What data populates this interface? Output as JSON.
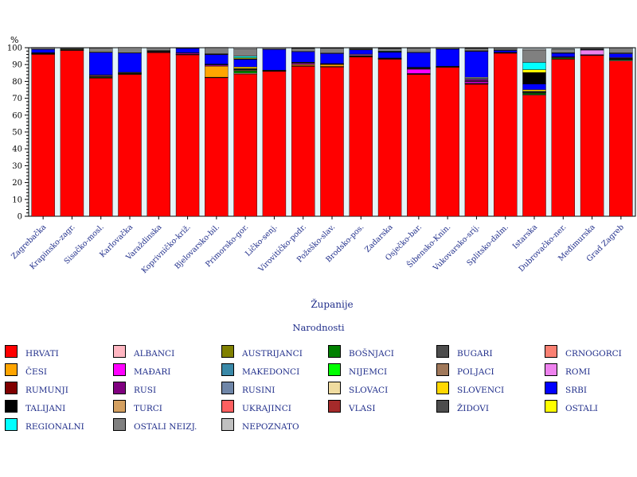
{
  "chart_data": {
    "type": "bar",
    "stacked": true,
    "unit_label": "%",
    "xlabel": "Županije",
    "legend_title": "Narodnosti",
    "ylim": [
      0,
      100
    ],
    "yticks": [
      0,
      10,
      20,
      30,
      40,
      50,
      60,
      70,
      80,
      90,
      100
    ],
    "categories": [
      "Zagrebačka",
      "Krapinsko-zagr.",
      "Sisačko-mosl.",
      "Karlovačka",
      "Varaždinska",
      "Koprivničko-križ.",
      "Bjelovarsko-bil.",
      "Primorsko-gor.",
      "Ličko-senj.",
      "Virovitičko-podr.",
      "Požeško-slav.",
      "Brodsko-pos.",
      "Zadarska",
      "Osječko-bar.",
      "Šibensko-Knin.",
      "Vukovarsko-srij.",
      "Splitsko-dalm.",
      "Istarska",
      "Dubrovačko-ner.",
      "Međimurska",
      "Grad Zagreb"
    ],
    "series": [
      {
        "name": "HRVATI",
        "color": "#ff0000",
        "values": [
          96.1,
          98.4,
          82.0,
          84.2,
          97.1,
          95.8,
          82.2,
          84.3,
          86.0,
          89.0,
          88.6,
          94.5,
          93.2,
          84.2,
          88.4,
          78.3,
          96.7,
          71.9,
          93.2,
          95.4,
          92.1
        ]
      },
      {
        "name": "ALBANCI",
        "color": "#ffb6c1",
        "values": [
          0.1,
          0.1,
          0.1,
          0.1,
          0.1,
          0.1,
          0.1,
          0.5,
          0.1,
          0.1,
          0.1,
          0.1,
          0.1,
          0.1,
          0.1,
          0.2,
          0.2,
          0.3,
          0.2,
          0.1,
          0.4
        ]
      },
      {
        "name": "AUSTRIJANCI",
        "color": "#808000",
        "values": [
          0,
          0,
          0,
          0,
          0,
          0,
          0,
          0,
          0,
          0,
          0,
          0,
          0,
          0,
          0,
          0,
          0,
          0,
          0,
          0,
          0
        ]
      },
      {
        "name": "BOŠNJACI",
        "color": "#008000",
        "values": [
          0.2,
          0.1,
          0.5,
          0.4,
          0.1,
          0.1,
          0.1,
          1.5,
          0.2,
          0.1,
          0.1,
          0.3,
          0.1,
          0.1,
          0.1,
          0.2,
          0.1,
          0.9,
          0.6,
          0.1,
          0.5
        ]
      },
      {
        "name": "BUGARI",
        "color": "#4d4d4d",
        "values": [
          0,
          0,
          0,
          0,
          0,
          0,
          0,
          0,
          0,
          0,
          0,
          0,
          0,
          0,
          0,
          0,
          0,
          0,
          0,
          0,
          0
        ]
      },
      {
        "name": "CRNOGORCI",
        "color": "#fa8072",
        "values": [
          0.1,
          0,
          0.1,
          0.1,
          0,
          0,
          0.1,
          0.5,
          0.1,
          0.1,
          0.1,
          0.1,
          0.1,
          0.1,
          0.1,
          0.1,
          0.1,
          0.3,
          0.4,
          0,
          0.2
        ]
      },
      {
        "name": "ČESI",
        "color": "#ffa500",
        "values": [
          0.1,
          0,
          0.3,
          0.1,
          0.1,
          0.1,
          6.5,
          0.1,
          0,
          0.7,
          1.2,
          0.1,
          0.1,
          0.2,
          0,
          0.1,
          0,
          0.1,
          0,
          0,
          0.1
        ]
      },
      {
        "name": "MAĐARI",
        "color": "#ff00ff",
        "values": [
          0.1,
          0,
          0.1,
          0,
          0.1,
          0.5,
          0.6,
          0.1,
          0,
          0.6,
          0.1,
          0.1,
          0,
          2.6,
          0,
          0.9,
          0,
          0.1,
          0,
          0.3,
          0.1
        ]
      },
      {
        "name": "MAKEDONCI",
        "color": "#3a89a8",
        "values": [
          0.1,
          0,
          0.1,
          0.1,
          0,
          0,
          0.1,
          0.3,
          0.1,
          0.1,
          0.1,
          0.1,
          0.1,
          0.1,
          0.1,
          0.1,
          0.1,
          0.4,
          0.1,
          0,
          0.2
        ]
      },
      {
        "name": "NIJEMCI",
        "color": "#00ff00",
        "values": [
          0,
          0,
          0,
          0,
          0,
          0,
          0.1,
          0.1,
          0,
          0.1,
          0.1,
          0.1,
          0,
          0.2,
          0,
          0.1,
          0,
          0.1,
          0,
          0,
          0
        ]
      },
      {
        "name": "POLJACI",
        "color": "#a0785a",
        "values": [
          0,
          0,
          0,
          0,
          0,
          0,
          0,
          0,
          0,
          0,
          0,
          0,
          0,
          0,
          0,
          0,
          0,
          0,
          0,
          0,
          0
        ]
      },
      {
        "name": "ROMI",
        "color": "#ee82ee",
        "values": [
          0.1,
          0.1,
          0.4,
          0.1,
          0.3,
          0.2,
          0.3,
          0.2,
          0,
          0.3,
          0.1,
          0.7,
          0.1,
          0.3,
          0.1,
          0.3,
          0,
          0.1,
          0,
          2.7,
          0.2
        ]
      },
      {
        "name": "RUMUNJI",
        "color": "#800000",
        "values": [
          0,
          0,
          0,
          0,
          0,
          0,
          0,
          0,
          0,
          0,
          0,
          0,
          0,
          0,
          0,
          0,
          0,
          0,
          0,
          0,
          0
        ]
      },
      {
        "name": "RUSI",
        "color": "#800080",
        "values": [
          0,
          0,
          0,
          0,
          0,
          0,
          0,
          0,
          0,
          0,
          0,
          0,
          0,
          0.1,
          0,
          1.0,
          0,
          0,
          0,
          0,
          0
        ]
      },
      {
        "name": "RUSINI",
        "color": "#6f86a8",
        "values": [
          0,
          0,
          0,
          0,
          0,
          0,
          0,
          0,
          0,
          0,
          0,
          0,
          0,
          0.1,
          0,
          0.6,
          0,
          0,
          0,
          0,
          0
        ]
      },
      {
        "name": "SLOVACI",
        "color": "#f0dca0",
        "values": [
          0,
          0,
          0,
          0,
          0,
          0,
          0.1,
          0,
          0,
          0.2,
          0,
          0,
          0,
          0.2,
          0,
          0.5,
          0,
          0,
          0,
          0,
          0
        ]
      },
      {
        "name": "SLOVENCI",
        "color": "#ffd700",
        "values": [
          0.2,
          0.4,
          0.3,
          0.3,
          0.2,
          0.2,
          0.1,
          1.0,
          0.2,
          0.1,
          0.1,
          0.1,
          0.1,
          0.1,
          0.1,
          0,
          0.1,
          0.9,
          0.1,
          0.2,
          0.3
        ]
      },
      {
        "name": "SRBI",
        "color": "#0000ff",
        "values": [
          1.9,
          0.1,
          13.3,
          11.4,
          0.1,
          2.6,
          5.6,
          4.4,
          12.3,
          6.3,
          6.0,
          2.6,
          3.5,
          8.7,
          10.2,
          15.5,
          1.1,
          3.3,
          2.1,
          0.1,
          2.4
        ]
      },
      {
        "name": "TALIJANI",
        "color": "#000000",
        "values": [
          0,
          0,
          0,
          0,
          0,
          0,
          0.1,
          0.5,
          0,
          0,
          0.1,
          0,
          0.1,
          0,
          0,
          0,
          0,
          6.9,
          0,
          0,
          0
        ]
      },
      {
        "name": "TURCI",
        "color": "#d4a060",
        "values": [
          0,
          0,
          0,
          0,
          0,
          0,
          0,
          0,
          0,
          0,
          0,
          0,
          0,
          0,
          0,
          0,
          0,
          0,
          0,
          0,
          0
        ]
      },
      {
        "name": "UKRAJINCI",
        "color": "#ff6060",
        "values": [
          0,
          0,
          0,
          0,
          0,
          0,
          0.1,
          0,
          0,
          0,
          0,
          0,
          0,
          0,
          0,
          0.1,
          0,
          0,
          0,
          0,
          0
        ]
      },
      {
        "name": "VLASI",
        "color": "#a52a2a",
        "values": [
          0,
          0,
          0,
          0,
          0,
          0,
          0,
          0,
          0,
          0,
          0,
          0,
          0,
          0,
          0,
          0,
          0,
          0,
          0,
          0,
          0
        ]
      },
      {
        "name": "ŽIDOVI",
        "color": "#4d4d4d",
        "values": [
          0,
          0,
          0,
          0,
          0,
          0,
          0,
          0,
          0,
          0,
          0,
          0,
          0,
          0,
          0,
          0,
          0,
          0,
          0,
          0,
          0
        ]
      },
      {
        "name": "OSTALI",
        "color": "#ffff00",
        "values": [
          0.2,
          0.1,
          0.3,
          0.2,
          0.1,
          0.1,
          0.2,
          0.6,
          0.1,
          0.1,
          0.1,
          0.1,
          0.2,
          0.1,
          0.1,
          0.2,
          0.1,
          1.7,
          0.2,
          0.1,
          0.3
        ]
      },
      {
        "name": "REGIONALNI",
        "color": "#00ffff",
        "values": [
          0,
          0,
          0,
          0,
          0.1,
          0,
          0.1,
          0.8,
          0,
          0,
          0,
          0,
          0.3,
          0.1,
          0.1,
          0,
          0.2,
          4.3,
          0.1,
          0.1,
          0.1
        ]
      },
      {
        "name": "OSTALI NEIZJ.",
        "color": "#808080",
        "values": [
          0.9,
          0.6,
          2.3,
          3.1,
          1.6,
          0.3,
          3.6,
          4.6,
          0.8,
          1.8,
          2.8,
          0.6,
          1.5,
          2.5,
          0.7,
          1.4,
          1.2,
          7.3,
          2.2,
          0.7,
          2.8
        ]
      },
      {
        "name": "NEPOZNATO",
        "color": "#c0c0c0",
        "values": [
          0.1,
          0.1,
          0.2,
          0.1,
          0.2,
          0.1,
          0.2,
          0.5,
          0.2,
          0.1,
          0.2,
          0.1,
          0.2,
          0.1,
          0.1,
          0.1,
          0.1,
          0.7,
          0.1,
          0.1,
          0.3
        ]
      }
    ]
  }
}
